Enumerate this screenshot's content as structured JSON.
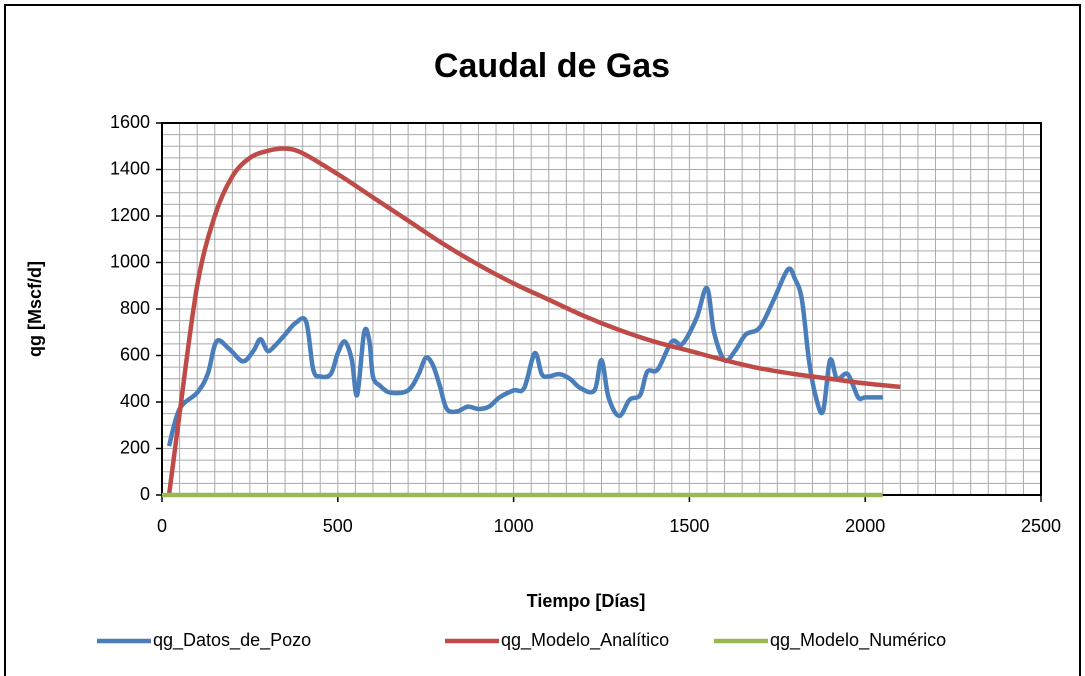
{
  "chart_data": {
    "type": "line",
    "title": "Caudal de Gas",
    "xlabel": "Tiempo [Días]",
    "ylabel": "qg [Mscf/d]",
    "xlim": [
      0,
      2500
    ],
    "xticks": [
      0,
      500,
      1000,
      1500,
      2000,
      2500
    ],
    "ylim": [
      0,
      1600
    ],
    "yticks": [
      0,
      200,
      400,
      600,
      800,
      1000,
      1200,
      1400,
      1600
    ],
    "grid": true,
    "minor_grid": {
      "x": 50,
      "y": 50
    },
    "legend": "bottom",
    "series": [
      {
        "name": "qg_Datos_de_Pozo",
        "color": "#4a7ebb",
        "x": [
          20,
          50,
          100,
          130,
          155,
          190,
          230,
          260,
          280,
          300,
          320,
          350,
          380,
          410,
          430,
          450,
          480,
          500,
          520,
          540,
          555,
          575,
          590,
          600,
          620,
          650,
          700,
          730,
          750,
          770,
          790,
          810,
          840,
          870,
          900,
          930,
          960,
          1000,
          1030,
          1060,
          1080,
          1100,
          1130,
          1160,
          1190,
          1230,
          1250,
          1270,
          1300,
          1330,
          1360,
          1380,
          1410,
          1450,
          1480,
          1520,
          1550,
          1570,
          1600,
          1630,
          1660,
          1700,
          1740,
          1780,
          1800,
          1820,
          1840,
          1860,
          1880,
          1900,
          1920,
          1950,
          1980,
          2000,
          2050
        ],
        "values": [
          210,
          370,
          440,
          520,
          660,
          630,
          575,
          620,
          670,
          620,
          640,
          690,
          740,
          745,
          540,
          510,
          520,
          610,
          660,
          580,
          430,
          700,
          660,
          510,
          470,
          440,
          450,
          520,
          590,
          560,
          470,
          370,
          360,
          380,
          370,
          380,
          420,
          450,
          460,
          610,
          520,
          510,
          520,
          500,
          460,
          450,
          580,
          420,
          340,
          410,
          430,
          530,
          540,
          660,
          650,
          760,
          890,
          700,
          580,
          620,
          690,
          720,
          840,
          970,
          930,
          840,
          580,
          420,
          360,
          580,
          500,
          520,
          420,
          420,
          420
        ]
      },
      {
        "name": "qg_Modelo_Analítico",
        "color": "#be4b48",
        "x": [
          20,
          50,
          100,
          150,
          200,
          250,
          300,
          350,
          400,
          500,
          600,
          700,
          800,
          900,
          1000,
          1100,
          1200,
          1300,
          1400,
          1500,
          1600,
          1700,
          1800,
          1900,
          2000,
          2100
        ],
        "values": [
          0,
          350,
          900,
          1200,
          1370,
          1450,
          1480,
          1490,
          1470,
          1380,
          1280,
          1180,
          1080,
          990,
          910,
          840,
          770,
          710,
          660,
          620,
          580,
          545,
          520,
          500,
          480,
          465
        ]
      },
      {
        "name": "qg_Modelo_Numérico",
        "color": "#98b954",
        "x": [
          0,
          2050
        ],
        "values": [
          0,
          0
        ]
      }
    ]
  }
}
